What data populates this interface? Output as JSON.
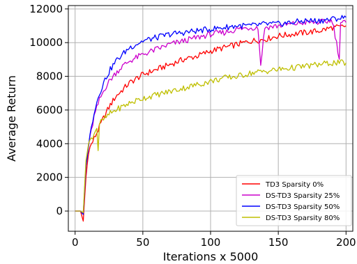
{
  "chart_data": {
    "type": "line",
    "title": "",
    "xlabel": "Iterations x 5000",
    "ylabel": "Average Return",
    "xlim": [
      -5,
      205
    ],
    "ylim": [
      -1200,
      12200
    ],
    "xticks": [
      0,
      50,
      100,
      150,
      200
    ],
    "yticks": [
      0,
      2000,
      4000,
      6000,
      8000,
      10000,
      12000
    ],
    "grid": true,
    "legend_position": "lower-right",
    "series": [
      {
        "name": "TD3 Sparsity 0%",
        "color": "#ff0000",
        "x": [
          0,
          4,
          6,
          8,
          10,
          14,
          18,
          22,
          26,
          30,
          35,
          40,
          50,
          60,
          70,
          80,
          90,
          100,
          110,
          120,
          130,
          140,
          150,
          160,
          170,
          180,
          190,
          195,
          200
        ],
        "y": [
          0,
          0,
          -600,
          2000,
          3600,
          4300,
          5000,
          5700,
          6300,
          6800,
          7200,
          7600,
          8100,
          8400,
          8700,
          9000,
          9200,
          9500,
          9700,
          9900,
          10100,
          10200,
          10400,
          10500,
          10600,
          10700,
          10900,
          10900,
          11000
        ]
      },
      {
        "name": "DS-TD3 Sparsity 25%",
        "color": "#cc00cc",
        "x": [
          0,
          4,
          6,
          8,
          10,
          14,
          18,
          22,
          26,
          30,
          35,
          40,
          50,
          60,
          70,
          80,
          90,
          100,
          110,
          120,
          130,
          135,
          137,
          140,
          150,
          160,
          170,
          180,
          190,
          195,
          196,
          200
        ],
        "y": [
          0,
          0,
          -200,
          2600,
          3900,
          5600,
          6600,
          7300,
          7800,
          8200,
          8600,
          8900,
          9300,
          9600,
          9900,
          10100,
          10300,
          10500,
          10600,
          10800,
          10900,
          10900,
          8700,
          10900,
          11000,
          11100,
          11200,
          11200,
          11300,
          9100,
          11200,
          11200
        ]
      },
      {
        "name": "DS-TD3 Sparsity 50%",
        "color": "#0000ff",
        "x": [
          0,
          4,
          6,
          8,
          10,
          14,
          18,
          22,
          26,
          30,
          35,
          40,
          50,
          60,
          70,
          80,
          90,
          100,
          110,
          120,
          130,
          140,
          150,
          160,
          170,
          180,
          190,
          200
        ],
        "y": [
          0,
          0,
          -200,
          2700,
          4000,
          5900,
          7000,
          7800,
          8400,
          8900,
          9300,
          9700,
          10100,
          10300,
          10500,
          10600,
          10700,
          10800,
          10900,
          11000,
          11000,
          11100,
          11100,
          11200,
          11300,
          11300,
          11400,
          11500
        ]
      },
      {
        "name": "DS-TD3 Sparsity 80%",
        "color": "#bfbf00",
        "x": [
          0,
          4,
          6,
          8,
          10,
          14,
          16,
          17,
          18,
          22,
          26,
          30,
          35,
          40,
          50,
          60,
          70,
          80,
          90,
          100,
          110,
          120,
          130,
          140,
          150,
          160,
          170,
          180,
          190,
          200
        ],
        "y": [
          0,
          0,
          -100,
          3000,
          4000,
          4600,
          5000,
          3600,
          5200,
          5500,
          5800,
          6000,
          6200,
          6400,
          6700,
          6900,
          7100,
          7300,
          7500,
          7700,
          7900,
          8000,
          8200,
          8300,
          8400,
          8500,
          8600,
          8700,
          8800,
          8800
        ]
      }
    ]
  }
}
